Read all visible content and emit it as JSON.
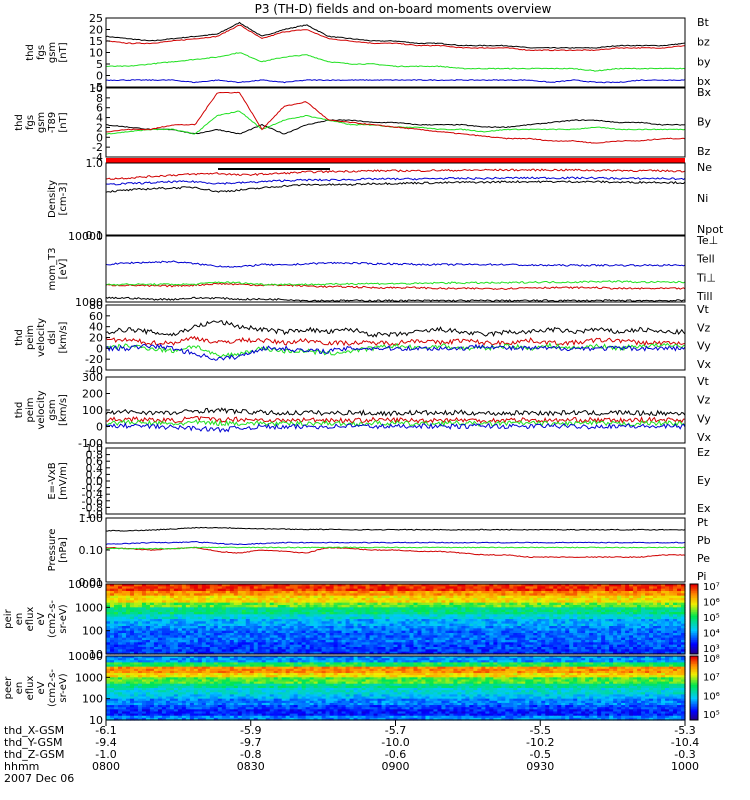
{
  "title": "P3 (TH-D) fields and on-board moments overview",
  "date": "2007 Dec 06",
  "ephemeris": {
    "row_labels": [
      "thd_X-GSM",
      "thd_Y-GSM",
      "thd_Z-GSM",
      "hhmm"
    ],
    "columns": [
      [
        "-6.1",
        "-9.4",
        "-1.0",
        "0800"
      ],
      [
        "-5.9",
        "-9.7",
        "-0.8",
        "0830"
      ],
      [
        "-5.7",
        "-10.0",
        "-0.6",
        "0900"
      ],
      [
        "-5.5",
        "-10.2",
        "-0.5",
        "0930"
      ],
      [
        "-5.3",
        "-10.4",
        "-0.3",
        "1000"
      ]
    ]
  },
  "colors": {
    "black": "#000000",
    "red": "#d00000",
    "green": "#20e020",
    "blue": "#0000d0",
    "bright_red": "#ff0000"
  },
  "chart_data": [
    {
      "type": "line",
      "ylabel": [
        "thd",
        "fgs",
        "gsm",
        "[nT]"
      ],
      "ylim": [
        -5,
        25
      ],
      "yticks": [
        "25",
        "20",
        "15",
        "10",
        "5",
        "0",
        "-5"
      ],
      "legend": [
        "Bt",
        "bz",
        "by",
        "bx"
      ],
      "series": [
        {
          "name": "Bt",
          "color": "black",
          "values": [
            17,
            16,
            15,
            16,
            17,
            18,
            23,
            17,
            20,
            22,
            17,
            16,
            15,
            15,
            14,
            14,
            13,
            13,
            13,
            12,
            12,
            12,
            12,
            13,
            13,
            13,
            14
          ]
        },
        {
          "name": "bz",
          "color": "red",
          "values": [
            15,
            14,
            14,
            15,
            16,
            17,
            22,
            16,
            19,
            20,
            16,
            15,
            14,
            14,
            13,
            13,
            12,
            12,
            12,
            11,
            11,
            11,
            11,
            12,
            12,
            12,
            13
          ]
        },
        {
          "name": "by",
          "color": "green",
          "values": [
            4,
            4,
            5,
            6,
            7,
            8,
            10,
            6,
            8,
            9,
            6,
            5,
            5,
            4,
            4,
            4,
            3,
            3,
            3,
            3,
            3,
            3,
            2,
            3,
            3,
            3,
            3
          ]
        },
        {
          "name": "bx",
          "color": "blue",
          "values": [
            -2,
            -2,
            -2,
            -2,
            -3,
            -2,
            -3,
            -2,
            -3,
            -2,
            -2,
            -2,
            -2,
            -2,
            -2,
            -2,
            -2,
            -2,
            -2,
            -2,
            -3,
            -2,
            -3,
            -3,
            -2,
            -2,
            -2
          ]
        }
      ]
    },
    {
      "type": "line",
      "ylabel": [
        "thd",
        "fgs",
        "gsm",
        "-T89",
        "[nT]"
      ],
      "ylim": [
        -5,
        10
      ],
      "yticks": [
        "10",
        "8",
        "6",
        "4",
        "2",
        "0",
        "-2",
        "-4"
      ],
      "legend": [
        "Bx",
        "By",
        "Bz"
      ],
      "series": [
        {
          "name": "Bx",
          "color": "black",
          "values": [
            2,
            1.5,
            1,
            1,
            0,
            1,
            0,
            2,
            0,
            2,
            3,
            3,
            2.5,
            2.5,
            2,
            2,
            2,
            1.5,
            1.5,
            2,
            2.5,
            3,
            3,
            2.5,
            2.5,
            2,
            2
          ]
        },
        {
          "name": "By",
          "color": "green",
          "values": [
            0,
            0.5,
            1,
            1,
            0,
            4,
            5,
            1,
            3,
            4,
            3,
            2,
            2,
            1.5,
            1.5,
            1,
            1,
            0.5,
            1,
            1,
            1,
            1,
            1.5,
            1,
            1,
            1,
            1
          ]
        },
        {
          "name": "Bz",
          "color": "red",
          "values": [
            0.5,
            1,
            1,
            2,
            2,
            9,
            9,
            1,
            6,
            7,
            3,
            2.5,
            2,
            1.5,
            1,
            0.5,
            0,
            -0.5,
            -1,
            -1,
            -1.5,
            -1.5,
            -2,
            -1.5,
            -1.5,
            -1,
            -1
          ]
        }
      ]
    },
    {
      "type": "line",
      "ylabel": [
        "Density",
        "[cm-3]"
      ],
      "ylim": [
        0.1,
        1.0
      ],
      "log": true,
      "yticks": [
        "1.0",
        "0.1"
      ],
      "legend": [
        "Ne",
        "Ni",
        "Npot"
      ],
      "series": [
        {
          "name": "Ne",
          "color": "red",
          "values": [
            0.6,
            0.62,
            0.65,
            0.68,
            0.7,
            0.72,
            0.68,
            0.7,
            0.72,
            0.75,
            0.76,
            0.77,
            0.78,
            0.78,
            0.78,
            0.79,
            0.79,
            0.8,
            0.8,
            0.8,
            0.8,
            0.8,
            0.79,
            0.79,
            0.78,
            0.78,
            0.77
          ]
        },
        {
          "name": "Ni",
          "color": "black",
          "values": [
            0.4,
            0.42,
            0.44,
            0.45,
            0.46,
            0.4,
            0.42,
            0.45,
            0.48,
            0.5,
            0.5,
            0.5,
            0.52,
            0.52,
            0.53,
            0.53,
            0.54,
            0.54,
            0.55,
            0.55,
            0.55,
            0.55,
            0.55,
            0.54,
            0.54,
            0.54,
            0.53
          ]
        },
        {
          "name": "Npot",
          "color": "blue",
          "values": [
            0.5,
            0.52,
            0.53,
            0.55,
            0.55,
            0.52,
            0.53,
            0.55,
            0.57,
            0.58,
            0.58,
            0.59,
            0.6,
            0.6,
            0.6,
            0.61,
            0.61,
            0.61,
            0.62,
            0.62,
            0.62,
            0.62,
            0.62,
            0.61,
            0.61,
            0.61,
            0.6
          ]
        }
      ]
    },
    {
      "type": "line",
      "ylabel": [
        "mom_T3",
        "[eV]"
      ],
      "ylim": [
        1000,
        10000
      ],
      "log": true,
      "yticks": [
        "10000",
        "1000"
      ],
      "legend": [
        "Te⊥",
        "Tell",
        "Ti⊥",
        "Till"
      ],
      "series": [
        {
          "name": "Te⊥",
          "color": "red",
          "values": [
            1800,
            1800,
            1750,
            1750,
            1800,
            1900,
            1850,
            1800,
            1800,
            1750,
            1700,
            1700,
            1650,
            1650,
            1650,
            1600,
            1600,
            1600,
            1600,
            1650,
            1650,
            1650,
            1650,
            1600,
            1600,
            1600,
            1600
          ]
        },
        {
          "name": "Tell",
          "color": "black",
          "values": [
            1150,
            1150,
            1100,
            1100,
            1150,
            1150,
            1100,
            1100,
            1100,
            1050,
            1050,
            1050,
            1050,
            1050,
            1050,
            1050,
            1050,
            1050,
            1050,
            1050,
            1050,
            1050,
            1050,
            1050,
            1050,
            1050,
            1050
          ]
        },
        {
          "name": "Ti⊥",
          "color": "blue",
          "values": [
            3700,
            3900,
            4000,
            4100,
            3800,
            3500,
            3400,
            3700,
            3600,
            3800,
            3900,
            3900,
            3800,
            3800,
            3700,
            3700,
            3700,
            3700,
            3700,
            3600,
            3600,
            3600,
            3600,
            3600,
            3600,
            3600,
            3600
          ]
        },
        {
          "name": "Till",
          "color": "green",
          "values": [
            1850,
            1850,
            1850,
            1850,
            1850,
            2000,
            1950,
            1850,
            1850,
            1850,
            1850,
            1900,
            1900,
            1900,
            1900,
            1950,
            1950,
            1950,
            1950,
            2000,
            2000,
            2000,
            2050,
            2050,
            2000,
            2000,
            2000
          ]
        }
      ]
    },
    {
      "type": "line",
      "ylabel": [
        "thd",
        "peim",
        "velocity",
        "dsl",
        "[km/s]"
      ],
      "ylim": [
        -40,
        80
      ],
      "yticks": [
        "80",
        "60",
        "40",
        "20",
        "0",
        "-20",
        "-40"
      ],
      "legend": [
        "Vt",
        "Vz",
        "Vy",
        "Vx"
      ],
      "series": [
        {
          "name": "Vt",
          "color": "black",
          "values": [
            30,
            35,
            30,
            25,
            40,
            50,
            40,
            35,
            30,
            35,
            30,
            35,
            25,
            25,
            30,
            35,
            30,
            25,
            30,
            30,
            35,
            30,
            35,
            30,
            35,
            30,
            30
          ]
        },
        {
          "name": "Vz",
          "color": "red",
          "values": [
            15,
            15,
            10,
            10,
            20,
            10,
            15,
            15,
            10,
            15,
            10,
            10,
            10,
            10,
            15,
            10,
            15,
            10,
            10,
            15,
            10,
            10,
            15,
            15,
            10,
            10,
            10
          ]
        },
        {
          "name": "Vy",
          "color": "green",
          "values": [
            0,
            5,
            0,
            -5,
            5,
            -15,
            -10,
            0,
            -5,
            -5,
            -10,
            -5,
            0,
            5,
            0,
            5,
            0,
            0,
            5,
            0,
            5,
            0,
            5,
            0,
            5,
            5,
            5
          ]
        },
        {
          "name": "Vx",
          "color": "blue",
          "values": [
            0,
            0,
            5,
            0,
            -10,
            -20,
            -15,
            0,
            0,
            -5,
            -5,
            0,
            0,
            0,
            0,
            0,
            0,
            5,
            0,
            0,
            0,
            0,
            0,
            0,
            0,
            0,
            0
          ]
        }
      ]
    },
    {
      "type": "line",
      "ylabel": [
        "thd",
        "peim",
        "velocity",
        "gsm",
        "[km/s]"
      ],
      "ylim": [
        -100,
        300
      ],
      "yticks": [
        "300",
        "200",
        "100",
        "0",
        "-100"
      ],
      "legend": [
        "Vt",
        "Vz",
        "Vy",
        "Vx"
      ],
      "series": [
        {
          "name": "Vt",
          "color": "black",
          "values": [
            80,
            90,
            85,
            80,
            95,
            100,
            90,
            85,
            80,
            85,
            80,
            85,
            80,
            80,
            85,
            80,
            85,
            80,
            80,
            85,
            80,
            85,
            80,
            85,
            80,
            80,
            80
          ]
        },
        {
          "name": "Vz",
          "color": "red",
          "values": [
            40,
            45,
            40,
            35,
            50,
            40,
            45,
            40,
            35,
            40,
            40,
            35,
            40,
            40,
            35,
            40,
            40,
            35,
            40,
            40,
            35,
            40,
            40,
            35,
            40,
            40,
            40
          ]
        },
        {
          "name": "Vy",
          "color": "green",
          "values": [
            20,
            25,
            20,
            15,
            25,
            20,
            20,
            20,
            15,
            20,
            20,
            15,
            20,
            20,
            15,
            20,
            20,
            15,
            20,
            20,
            15,
            20,
            20,
            15,
            20,
            20,
            20
          ]
        },
        {
          "name": "Vx",
          "color": "blue",
          "values": [
            0,
            5,
            0,
            -5,
            -10,
            -20,
            -10,
            0,
            -5,
            0,
            0,
            5,
            0,
            0,
            5,
            0,
            0,
            5,
            0,
            0,
            5,
            0,
            0,
            5,
            0,
            0,
            0
          ]
        }
      ]
    },
    {
      "type": "line",
      "ylabel": [
        "E=-VxB",
        "[mV/m]"
      ],
      "ylim": [
        -1.0,
        1.0
      ],
      "yticks": [
        "1.0",
        "0.8",
        "0.6",
        "0.4",
        "0.2",
        "0.0",
        "-0.2",
        "-0.4",
        "-0.6",
        "-0.8",
        "-1.0"
      ],
      "legend": [
        "Ez",
        "Ey",
        "Ex"
      ],
      "series": []
    },
    {
      "type": "line",
      "ylabel": [
        "Pressure",
        "[nPa]"
      ],
      "ylim": [
        0.01,
        1.0
      ],
      "log": true,
      "yticks": [
        "1.00",
        "0.10",
        "0.01"
      ],
      "legend": [
        "Pt",
        "Pb",
        "Pe",
        "Pi"
      ],
      "series": [
        {
          "name": "Pt",
          "color": "black",
          "values": [
            0.4,
            0.4,
            0.42,
            0.45,
            0.5,
            0.5,
            0.48,
            0.46,
            0.45,
            0.44,
            0.44,
            0.43,
            0.43,
            0.43,
            0.43,
            0.43,
            0.43,
            0.43,
            0.43,
            0.43,
            0.43,
            0.43,
            0.43,
            0.43,
            0.43,
            0.43,
            0.43
          ]
        },
        {
          "name": "Pb",
          "color": "red",
          "values": [
            0.12,
            0.11,
            0.1,
            0.11,
            0.12,
            0.09,
            0.08,
            0.1,
            0.09,
            0.08,
            0.12,
            0.11,
            0.1,
            0.1,
            0.09,
            0.09,
            0.08,
            0.07,
            0.07,
            0.06,
            0.06,
            0.06,
            0.06,
            0.06,
            0.06,
            0.07,
            0.07
          ]
        },
        {
          "name": "Pe",
          "color": "green",
          "values": [
            0.11,
            0.11,
            0.11,
            0.11,
            0.12,
            0.12,
            0.12,
            0.12,
            0.12,
            0.12,
            0.12,
            0.12,
            0.12,
            0.12,
            0.12,
            0.12,
            0.12,
            0.12,
            0.12,
            0.12,
            0.12,
            0.12,
            0.12,
            0.12,
            0.12,
            0.12,
            0.12
          ]
        },
        {
          "name": "Pi",
          "color": "blue",
          "values": [
            0.15,
            0.16,
            0.17,
            0.17,
            0.18,
            0.16,
            0.15,
            0.16,
            0.17,
            0.17,
            0.17,
            0.17,
            0.17,
            0.17,
            0.17,
            0.17,
            0.17,
            0.17,
            0.17,
            0.17,
            0.17,
            0.17,
            0.17,
            0.17,
            0.17,
            0.17,
            0.17
          ]
        }
      ]
    },
    {
      "type": "heatmap",
      "ylabel": [
        "thd",
        "peir",
        "en",
        "eflux",
        "eV",
        "(cm2-s-",
        "sr-eV)"
      ],
      "log": true,
      "yticks": [
        "10000",
        "1000",
        "100",
        "10"
      ],
      "colorbar_ticks": [
        "10⁷",
        "10⁶",
        "10⁵",
        "10⁴",
        "10³"
      ],
      "energy_profile": [
        0.95,
        0.85,
        0.75,
        0.62,
        0.5,
        0.4,
        0.32,
        0.28,
        0.25,
        0.25,
        0.22,
        0.2
      ]
    },
    {
      "type": "heatmap",
      "ylabel": [
        "thd",
        "peer",
        "en",
        "eflux",
        "eV",
        "(cm2-s-",
        "sr-eV)"
      ],
      "log": true,
      "yticks": [
        "10000",
        "1000",
        "100",
        "10"
      ],
      "colorbar_ticks": [
        "10⁸",
        "10⁷",
        "10⁶",
        "10⁵"
      ],
      "energy_profile": [
        0.3,
        0.55,
        0.85,
        0.75,
        0.6,
        0.48,
        0.4,
        0.35,
        0.28,
        0.22,
        0.18,
        0.28
      ]
    }
  ]
}
